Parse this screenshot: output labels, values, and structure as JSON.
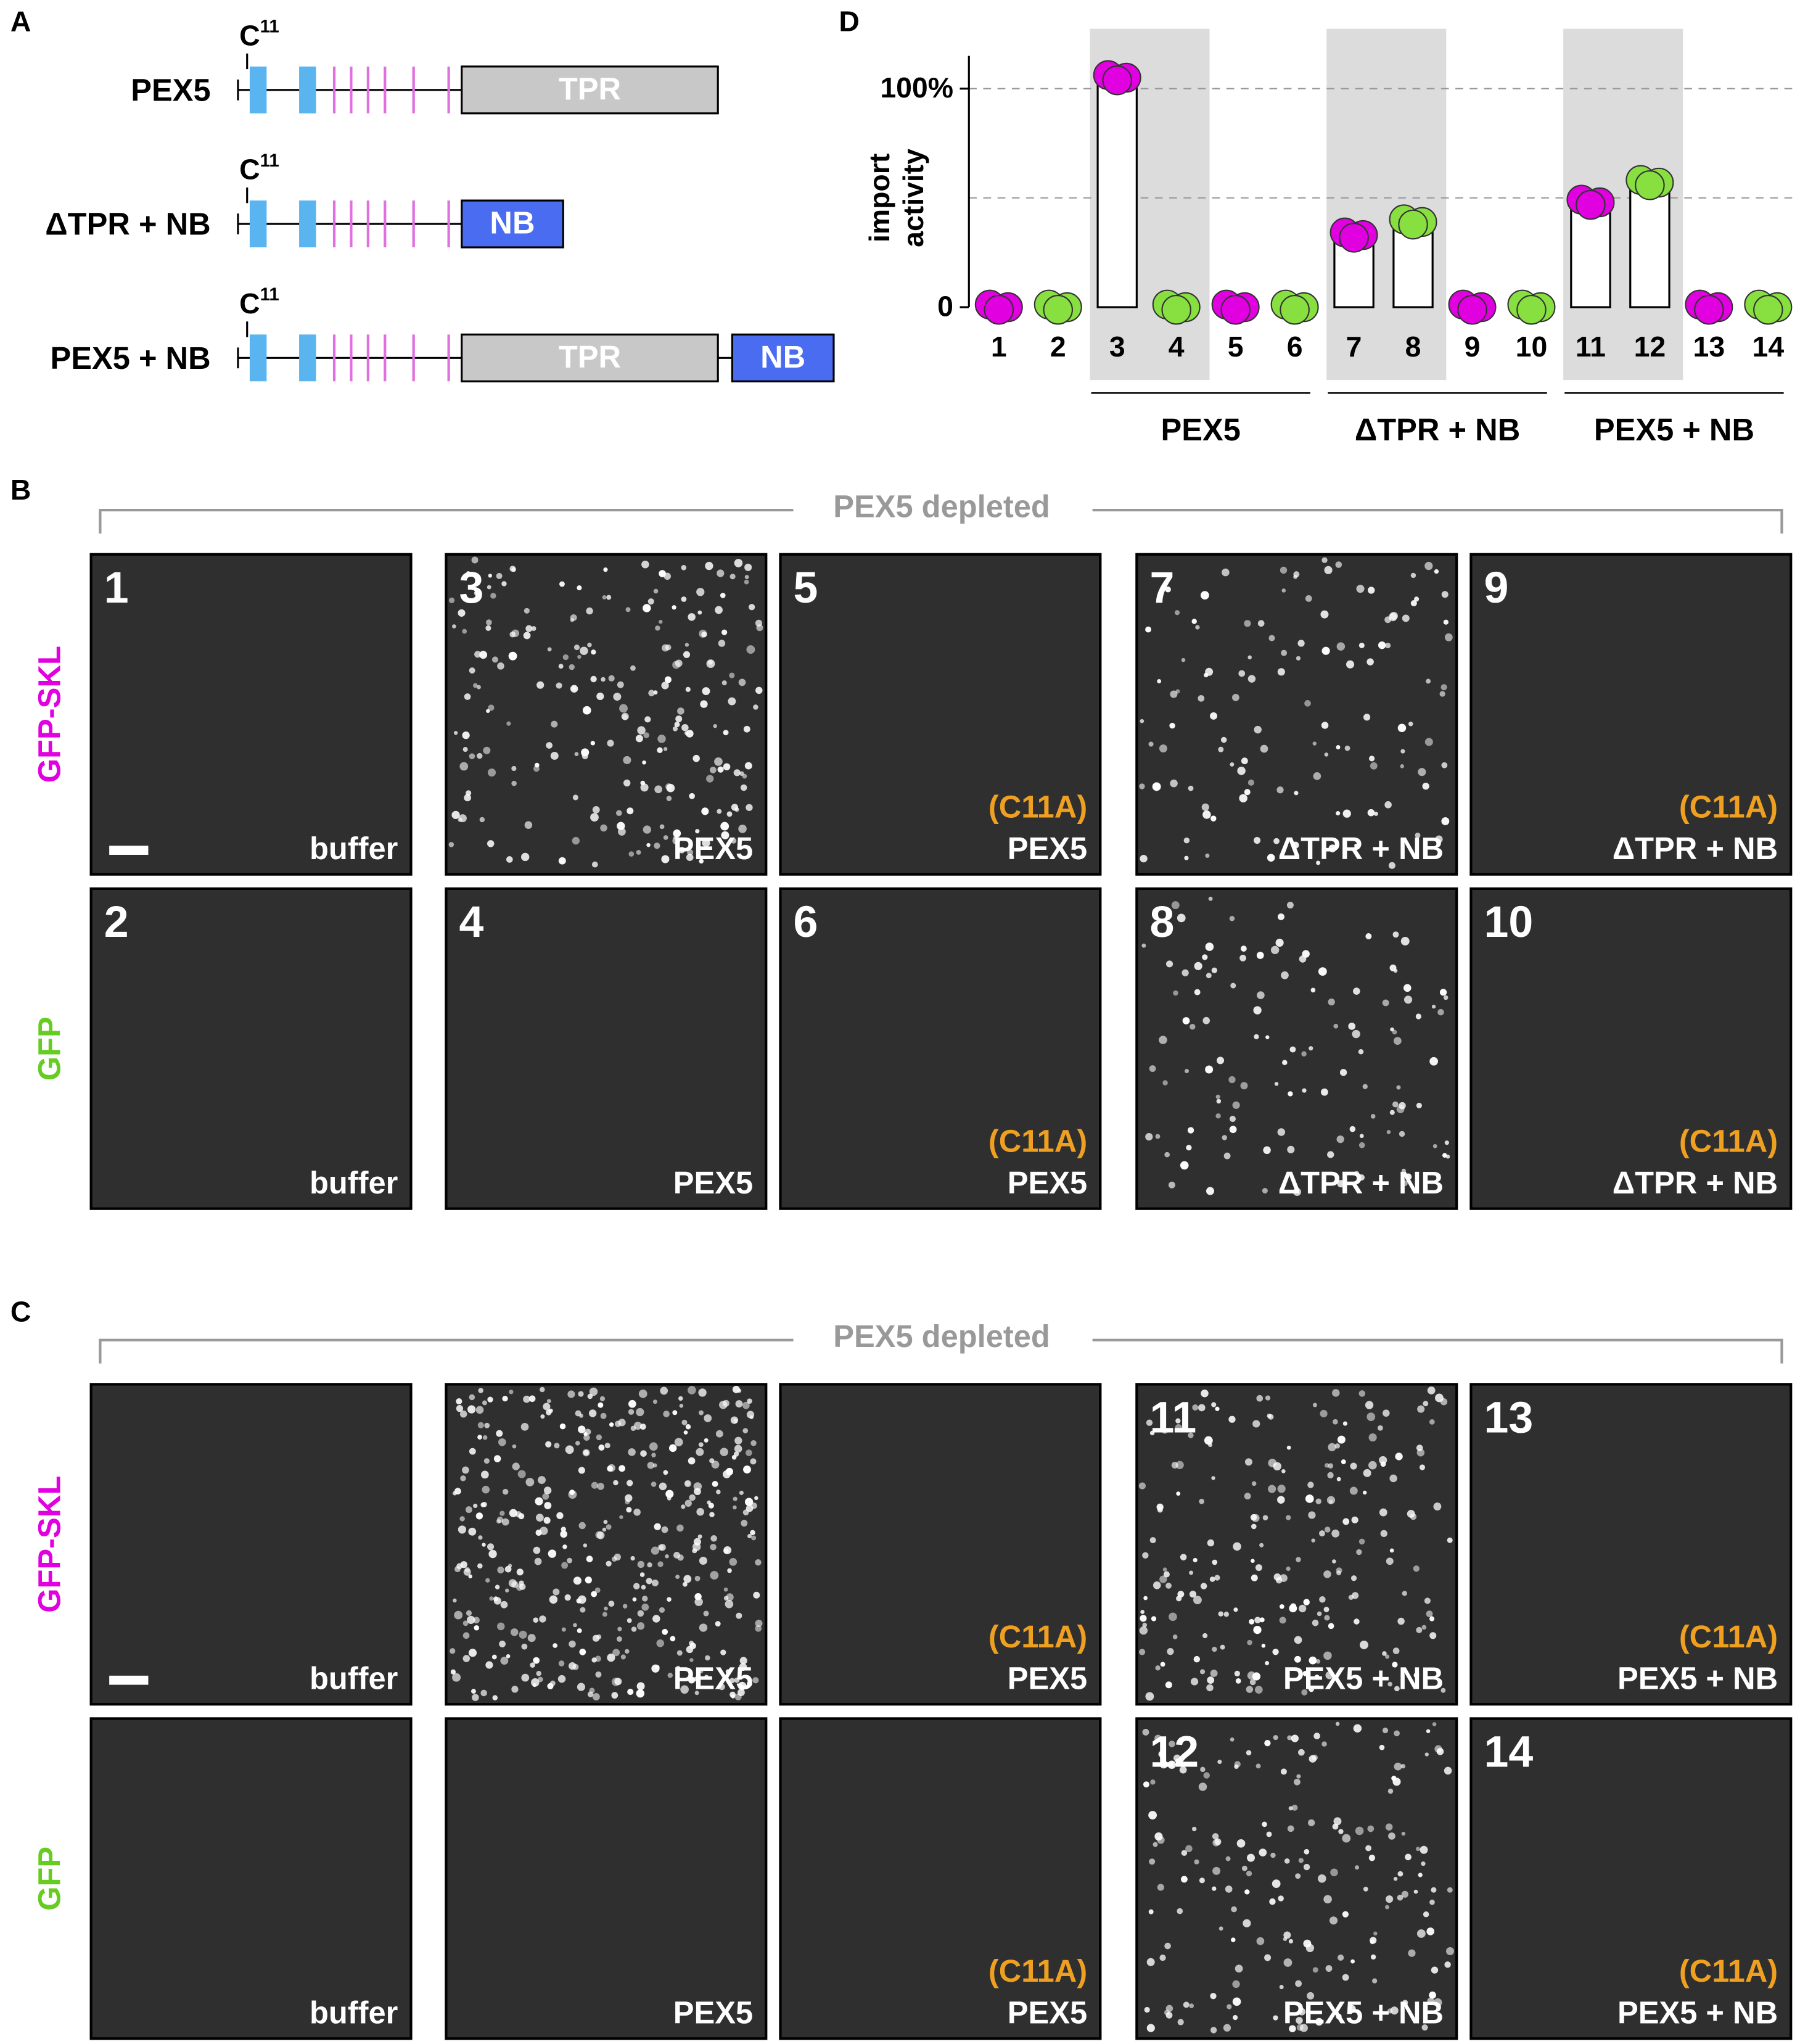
{
  "panel_a": {
    "letter": "A",
    "constructs": [
      {
        "name": "PEX5",
        "cys": "C",
        "cys_position": "11",
        "domains": [
          "TPR"
        ]
      },
      {
        "name": "ΔTPR + NB",
        "cys": "C",
        "cys_position": "11",
        "domains": [
          "NB"
        ]
      },
      {
        "name": "PEX5 + NB",
        "cys": "C",
        "cys_position": "11",
        "domains": [
          "TPR",
          "NB"
        ]
      }
    ]
  },
  "chart_data": {
    "type": "bar",
    "letter": "D",
    "y_label": [
      "import",
      "activity"
    ],
    "categories": [
      "1",
      "2",
      "3",
      "4",
      "5",
      "6",
      "7",
      "8",
      "9",
      "10",
      "11",
      "12",
      "13",
      "14"
    ],
    "values": [
      0,
      0,
      105,
      0,
      0,
      0,
      33,
      39,
      0,
      0,
      48,
      57,
      0,
      0
    ],
    "colors": [
      "#e000e0",
      "#88e040",
      "#e000e0",
      "#88e040",
      "#e000e0",
      "#88e040",
      "#e000e0",
      "#88e040",
      "#e000e0",
      "#88e040",
      "#e000e0",
      "#88e040",
      "#e000e0",
      "#88e040"
    ],
    "bar_color": "#ffffff",
    "ylim": [
      0,
      115
    ],
    "yticks": [
      0,
      {
        "value": 100,
        "label": "100%"
      }
    ],
    "gridlines": [
      50,
      100
    ],
    "groups": [
      "PEX5",
      "ΔTPR + NB",
      "PEX5 + NB"
    ]
  },
  "panel_b": {
    "letter": "B",
    "header": "PEX5 depleted",
    "rows": [
      "GFP-SKL",
      "GFP"
    ],
    "cells": [
      [
        {
          "number": "1",
          "label": "buffer"
        },
        {
          "number": "3",
          "label": "PEX5"
        },
        {
          "number": "5",
          "mutation": "(C11A)",
          "label": "PEX5"
        },
        {
          "number": "7",
          "label": "ΔTPR + NB"
        },
        {
          "number": "9",
          "mutation": "(C11A)",
          "label": "ΔTPR + NB"
        }
      ],
      [
        {
          "number": "2",
          "label": "buffer"
        },
        {
          "number": "4",
          "label": "PEX5"
        },
        {
          "number": "6",
          "mutation": "(C11A)",
          "label": "PEX5"
        },
        {
          "number": "8",
          "label": "ΔTPR + NB"
        },
        {
          "number": "10",
          "mutation": "(C11A)",
          "label": "ΔTPR + NB"
        }
      ]
    ]
  },
  "panel_c": {
    "letter": "C",
    "header": "PEX5 depleted",
    "rows": [
      "GFP-SKL",
      "GFP"
    ],
    "cells": [
      [
        {
          "label": "buffer"
        },
        {
          "label": "PEX5"
        },
        {
          "mutation": "(C11A)",
          "label": "PEX5"
        },
        {
          "number": "11",
          "label": "PEX5 + NB"
        },
        {
          "number": "13",
          "mutation": "(C11A)",
          "label": "PEX5 + NB"
        }
      ],
      [
        {
          "label": "buffer"
        },
        {
          "label": "PEX5"
        },
        {
          "mutation": "(C11A)",
          "label": "PEX5"
        },
        {
          "number": "12",
          "label": "PEX5 + NB"
        },
        {
          "number": "14",
          "mutation": "(C11A)",
          "label": "PEX5 + NB"
        }
      ]
    ]
  }
}
